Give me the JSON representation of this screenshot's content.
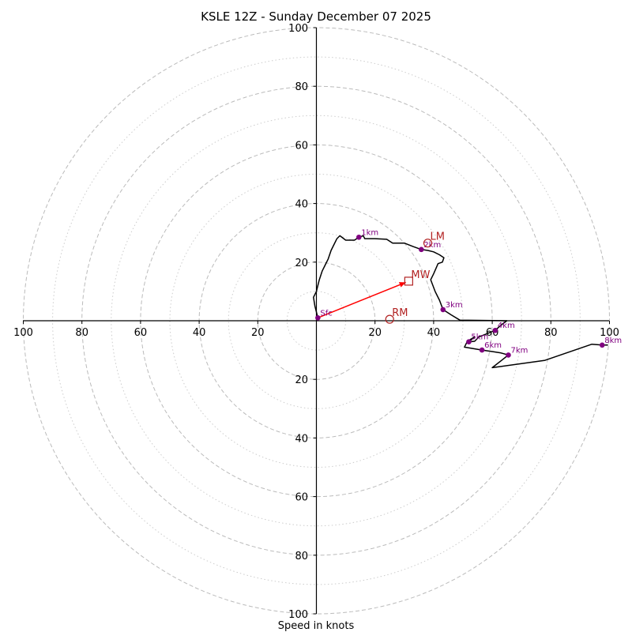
{
  "chart_data": {
    "type": "hodograph",
    "title": "KSLE 12Z - Sunday December 07 2025",
    "xlabel": "Speed in knots",
    "ylabel": "",
    "xlim": [
      -100,
      100
    ],
    "ylim": [
      -100,
      100
    ],
    "ring_speeds_major": [
      20,
      40,
      60,
      80,
      100
    ],
    "ring_speeds_minor": [
      10,
      30,
      50,
      70,
      90
    ],
    "tick_labels": [
      "100",
      "80",
      "60",
      "40",
      "20",
      "20",
      "40",
      "60",
      "80",
      "100"
    ],
    "y_tick_labels_top": [
      "100",
      "80",
      "60",
      "40",
      "20"
    ],
    "y_tick_labels_bottom": [
      "20",
      "40",
      "60",
      "80",
      "100"
    ],
    "trace": [
      [
        0.5,
        1
      ],
      [
        -0.5,
        5
      ],
      [
        -1,
        8
      ],
      [
        0,
        10
      ],
      [
        1,
        14
      ],
      [
        2,
        17
      ],
      [
        3,
        19
      ],
      [
        4,
        21
      ],
      [
        5,
        24
      ],
      [
        6,
        26
      ],
      [
        7,
        28
      ],
      [
        8,
        29
      ],
      [
        10,
        27.5
      ],
      [
        13,
        27.5
      ],
      [
        14.5,
        28.5
      ],
      [
        16,
        29
      ],
      [
        16.5,
        28
      ],
      [
        20,
        28
      ],
      [
        24,
        27.8
      ],
      [
        26,
        26.5
      ],
      [
        30,
        26.5
      ],
      [
        33,
        25.3
      ],
      [
        35.8,
        24.3
      ],
      [
        38,
        24
      ],
      [
        40,
        23.5
      ],
      [
        42,
        22.5
      ],
      [
        43.5,
        21.5
      ],
      [
        43,
        20
      ],
      [
        41.5,
        19.5
      ],
      [
        40,
        16
      ],
      [
        39,
        14
      ],
      [
        40.5,
        10
      ],
      [
        42,
        7
      ],
      [
        43.2,
        3.8
      ],
      [
        46,
        2
      ],
      [
        49,
        0.2
      ],
      [
        65,
        0
      ],
      [
        63,
        -1.5
      ],
      [
        61,
        -3.3
      ],
      [
        58,
        -4.5
      ],
      [
        55.5,
        -5.5
      ],
      [
        54,
        -7
      ],
      [
        52,
        -7.2
      ],
      [
        54,
        -5.5
      ],
      [
        51.5,
        -7
      ],
      [
        50.5,
        -9
      ],
      [
        53.5,
        -9.5
      ],
      [
        56.5,
        -10
      ],
      [
        60,
        -10.5
      ],
      [
        63,
        -11
      ],
      [
        65.5,
        -11.7
      ],
      [
        60,
        -16
      ],
      [
        78,
        -13.5
      ],
      [
        94,
        -8
      ],
      [
        97.5,
        -8.3
      ],
      [
        99.5,
        -8.3
      ]
    ],
    "height_markers": [
      {
        "label": "Sfc",
        "u": 0.5,
        "v": 1
      },
      {
        "label": "1km",
        "u": 14.5,
        "v": 28.5
      },
      {
        "label": "2km",
        "u": 35.8,
        "v": 24.3
      },
      {
        "label": "3km",
        "u": 43.2,
        "v": 3.8
      },
      {
        "label": "4km",
        "u": 61,
        "v": -3.3
      },
      {
        "label": "5km",
        "u": 52,
        "v": -7.2
      },
      {
        "label": "6km",
        "u": 56.5,
        "v": -10
      },
      {
        "label": "7km",
        "u": 65.5,
        "v": -11.7
      },
      {
        "label": "8km",
        "u": 97.5,
        "v": -8.3
      }
    ],
    "motion_markers": [
      {
        "label": "LM",
        "u": 38,
        "v": 26.5,
        "marker": "circle"
      },
      {
        "label": "MW",
        "u": 31.5,
        "v": 13.5,
        "marker": "square"
      },
      {
        "label": "RM",
        "u": 25,
        "v": 0.5,
        "marker": "circle"
      }
    ],
    "shear_vector": {
      "from": [
        0.5,
        1
      ],
      "to": [
        31.5,
        13.5
      ]
    },
    "colors": {
      "trace": "#000000",
      "height_marker": "#800080",
      "motion": "#b22222",
      "shear_arrow": "#ff0000",
      "ring": "#bbbbbb",
      "axes": "#000000"
    }
  }
}
